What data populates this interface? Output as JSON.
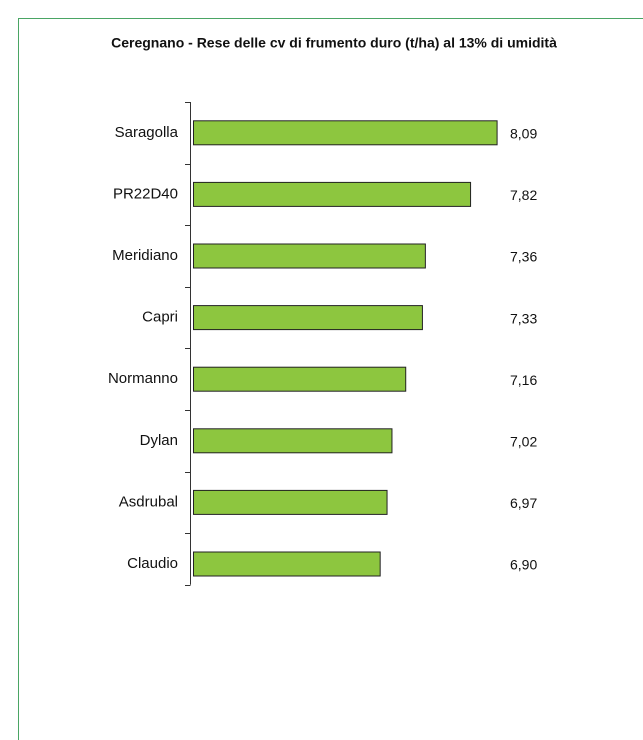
{
  "chart_data": {
    "type": "bar",
    "orientation": "horizontal",
    "title": "Ceregnano - Rese delle cv di frumento duro (t/ha) al 13% di umidità",
    "categories": [
      "Saragolla",
      "PR22D40",
      "Meridiano",
      "Capri",
      "Normanno",
      "Dylan",
      "Asdrubal",
      "Claudio"
    ],
    "values": [
      8.09,
      7.82,
      7.36,
      7.33,
      7.16,
      7.02,
      6.97,
      6.9
    ],
    "value_labels": [
      "8,09",
      "7,82",
      "7,36",
      "7,33",
      "7,16",
      "7,02",
      "6,97",
      "6,90"
    ],
    "color": "#8dc63f",
    "xlim": [
      5,
      9
    ]
  }
}
